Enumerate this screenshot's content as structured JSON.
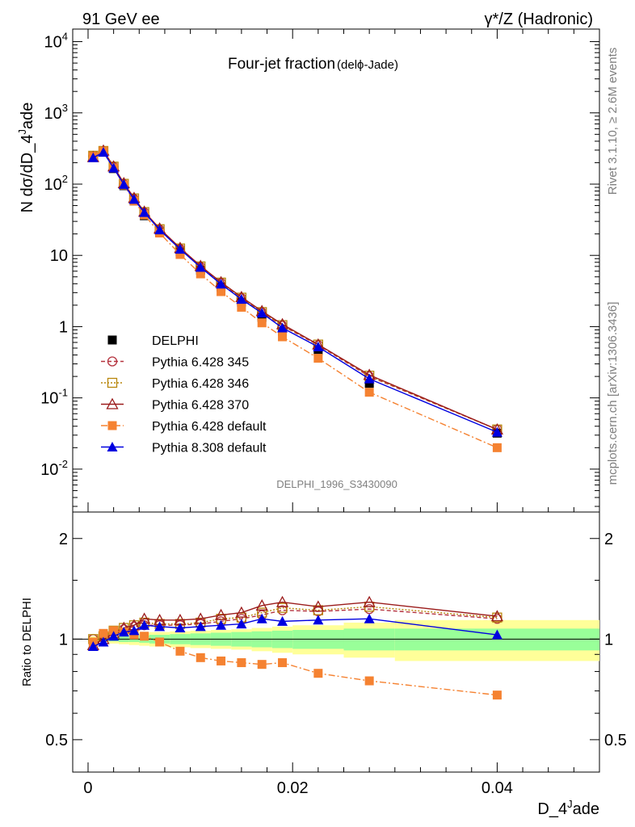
{
  "header": {
    "left": "91 GeV ee",
    "right": "γ*/Z (Hadronic)"
  },
  "plot_title": {
    "main": "Four-jet fraction",
    "sub": "(delϕ-Jade)"
  },
  "side_text": {
    "rivet": "Rivet 3.1.10, ≥ 2.6M events",
    "mcplots": "mcplots.cern.ch [arXiv:1306.3436]"
  },
  "analysis_label": "DELPHI_1996_S3430090",
  "axes": {
    "ylabel_main": "N dσ/dD_4^Jade",
    "ylabel_ratio": "Ratio to DELPHI",
    "xlabel": "D_4^Jade",
    "x_ticks": [
      "0",
      "0.02",
      "0.04"
    ],
    "y_main_ticks": [
      "10^-2",
      "10^-1",
      "1",
      "10",
      "10^2",
      "10^3",
      "10^4"
    ],
    "y_ratio_ticks": [
      "0.5",
      "1",
      "2"
    ]
  },
  "legend": [
    {
      "label": "DELPHI"
    },
    {
      "label": "Pythia 6.428 345"
    },
    {
      "label": "Pythia 6.428 346"
    },
    {
      "label": "Pythia 6.428 370"
    },
    {
      "label": "Pythia 6.428 default"
    },
    {
      "label": "Pythia 8.308 default"
    }
  ],
  "chart_data": {
    "type": "line",
    "log_y": true,
    "xlim": [
      -0.0015,
      0.05
    ],
    "ylim_main": [
      0.0025,
      15000
    ],
    "ylim_ratio": [
      0.4,
      2.4
    ],
    "x": [
      0.0005,
      0.0015,
      0.0025,
      0.0035,
      0.0045,
      0.0055,
      0.007,
      0.009,
      0.011,
      0.013,
      0.015,
      0.017,
      0.019,
      0.0225,
      0.0275,
      0.04
    ],
    "bands": {
      "edges": [
        0.0,
        0.001,
        0.002,
        0.003,
        0.004,
        0.005,
        0.006,
        0.008,
        0.01,
        0.012,
        0.014,
        0.016,
        0.018,
        0.02,
        0.025,
        0.03,
        0.05
      ],
      "inner_half": [
        0.01,
        0.01,
        0.015,
        0.02,
        0.02,
        0.025,
        0.03,
        0.035,
        0.04,
        0.045,
        0.05,
        0.055,
        0.06,
        0.065,
        0.075,
        0.075
      ],
      "outer_half": [
        0.02,
        0.02,
        0.03,
        0.035,
        0.04,
        0.045,
        0.05,
        0.055,
        0.06,
        0.065,
        0.07,
        0.08,
        0.09,
        0.1,
        0.12,
        0.14
      ],
      "inner_color": "#99ff99",
      "outer_color": "#ffff99"
    },
    "series": [
      {
        "name": "DELPHI",
        "color": "#000000",
        "marker": "square-filled",
        "dash": "",
        "values": [
          250,
          280,
          165,
          95,
          58,
          36,
          21,
          11.2,
          6.2,
          3.6,
          2.2,
          1.35,
          0.85,
          0.46,
          0.16,
          0.032
        ],
        "ratio": [
          1,
          1,
          1,
          1,
          1,
          1,
          1,
          1,
          1,
          1,
          1,
          1,
          1,
          1,
          1,
          1
        ]
      },
      {
        "name": "Pythia 6.428 345",
        "color": "#b5333f",
        "marker": "circle-open",
        "dash": "5,3",
        "values": [
          248,
          290,
          175,
          100,
          62,
          40,
          23,
          12.3,
          6.9,
          4.1,
          2.5,
          1.58,
          1.03,
          0.55,
          0.2,
          0.036
        ],
        "ratio": [
          1.0,
          1.01,
          1.05,
          1.07,
          1.09,
          1.1,
          1.1,
          1.1,
          1.11,
          1.13,
          1.15,
          1.18,
          1.22,
          1.21,
          1.23,
          1.15
        ]
      },
      {
        "name": "Pythia 6.428 346",
        "color": "#b8860b",
        "marker": "square-open",
        "dash": "2,2",
        "values": [
          250,
          292,
          176,
          101,
          63,
          40.5,
          23.3,
          12.5,
          7.0,
          4.15,
          2.55,
          1.6,
          1.05,
          0.56,
          0.205,
          0.036
        ],
        "ratio": [
          1.0,
          1.02,
          1.06,
          1.08,
          1.1,
          1.12,
          1.11,
          1.11,
          1.12,
          1.15,
          1.16,
          1.2,
          1.24,
          1.22,
          1.25,
          1.16
        ]
      },
      {
        "name": "Pythia 6.428 370",
        "color": "#9b1b1b",
        "marker": "triangle-open",
        "dash": "",
        "values": [
          240,
          295,
          177,
          103,
          64,
          41,
          23.8,
          12.7,
          7.1,
          4.2,
          2.6,
          1.65,
          1.08,
          0.56,
          0.21,
          0.036
        ],
        "ratio": [
          0.96,
          1.0,
          1.04,
          1.08,
          1.1,
          1.15,
          1.14,
          1.14,
          1.15,
          1.18,
          1.2,
          1.26,
          1.29,
          1.25,
          1.29,
          1.17
        ]
      },
      {
        "name": "Pythia 6.428 default",
        "color": "#f58231",
        "marker": "square-filled",
        "dash": "8,3,2,3",
        "values": [
          245,
          290,
          168,
          97,
          58,
          37,
          20.6,
          10.3,
          5.5,
          3.1,
          1.87,
          1.13,
          0.72,
          0.36,
          0.12,
          0.02
        ],
        "ratio": [
          0.98,
          1.04,
          1.06,
          1.05,
          1.03,
          1.02,
          0.98,
          0.92,
          0.88,
          0.86,
          0.85,
          0.84,
          0.85,
          0.79,
          0.75,
          0.68
        ]
      },
      {
        "name": "Pythia 8.308 default",
        "color": "#0000e0",
        "marker": "triangle-filled",
        "dash": "",
        "values": [
          235,
          280,
          168,
          99,
          61,
          40,
          22.8,
          12.2,
          6.8,
          3.95,
          2.42,
          1.55,
          0.96,
          0.52,
          0.185,
          0.033
        ],
        "ratio": [
          0.95,
          0.98,
          1.02,
          1.05,
          1.06,
          1.1,
          1.09,
          1.08,
          1.09,
          1.1,
          1.11,
          1.15,
          1.13,
          1.14,
          1.15,
          1.03
        ]
      }
    ]
  }
}
